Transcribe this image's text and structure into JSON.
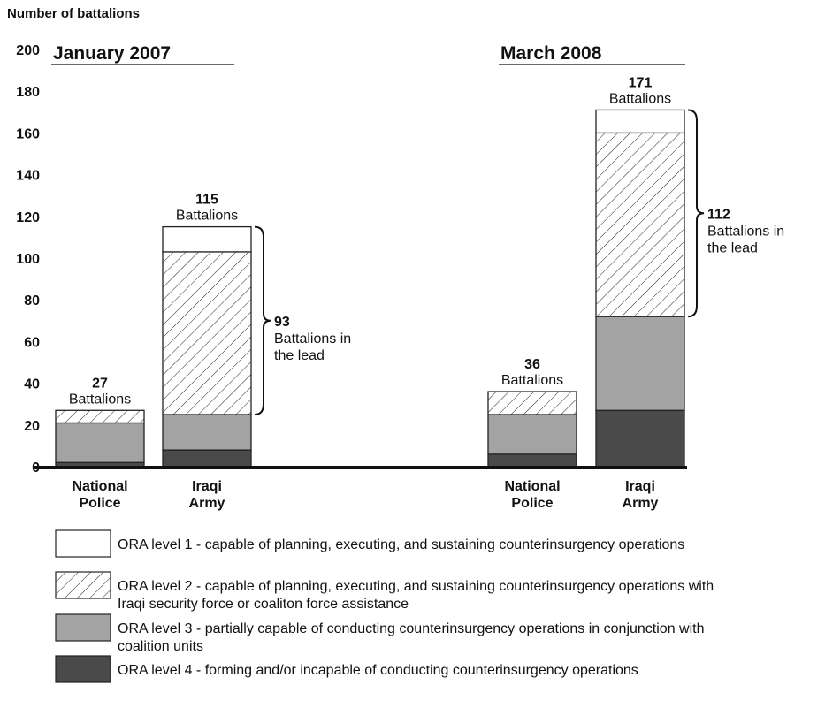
{
  "chart_data": {
    "type": "bar",
    "stacked": true,
    "y_axis_label": "Number of battalions",
    "groups": [
      "January 2007",
      "March 2008"
    ],
    "categories": [
      "National Police",
      "Iraqi Army",
      "National Police",
      "Iraqi Army"
    ],
    "ylim": [
      0,
      200
    ],
    "yticks": [
      0,
      20,
      40,
      60,
      80,
      100,
      120,
      140,
      160,
      180,
      200
    ],
    "series": [
      {
        "name_lines": [
          "ORA level 4 - forming and/or incapable of conducting counterinsurgency operations"
        ],
        "color": "#4a4a4a",
        "values": [
          2,
          8,
          6,
          27
        ]
      },
      {
        "name_lines": [
          "ORA level 3 - partially capable of conducting counterinsurgency operations in conjunction with",
          "coalition units"
        ],
        "color": "#a3a3a3",
        "values": [
          19,
          17,
          19,
          45
        ]
      },
      {
        "name_lines": [
          "ORA level 2 - capable of planning, executing, and sustaining counterinsurgency operations with",
          "Iraqi security force or coaliton force assistance"
        ],
        "color": "hatch",
        "values": [
          6,
          78,
          11,
          88
        ]
      },
      {
        "name_lines": [
          "ORA level 1 - capable of planning, executing, and sustaining counterinsurgency operations"
        ],
        "color": "#ffffff",
        "values": [
          0,
          12,
          0,
          11
        ]
      }
    ],
    "totals": [
      27,
      115,
      36,
      171
    ],
    "total_label": "Battalions",
    "lead": [
      {
        "category": 1,
        "value": 93,
        "text_lines": [
          "Battalions in",
          "the lead"
        ]
      },
      {
        "category": 3,
        "value": 112,
        "text_lines": [
          "Battalions in",
          "the lead"
        ]
      }
    ]
  }
}
